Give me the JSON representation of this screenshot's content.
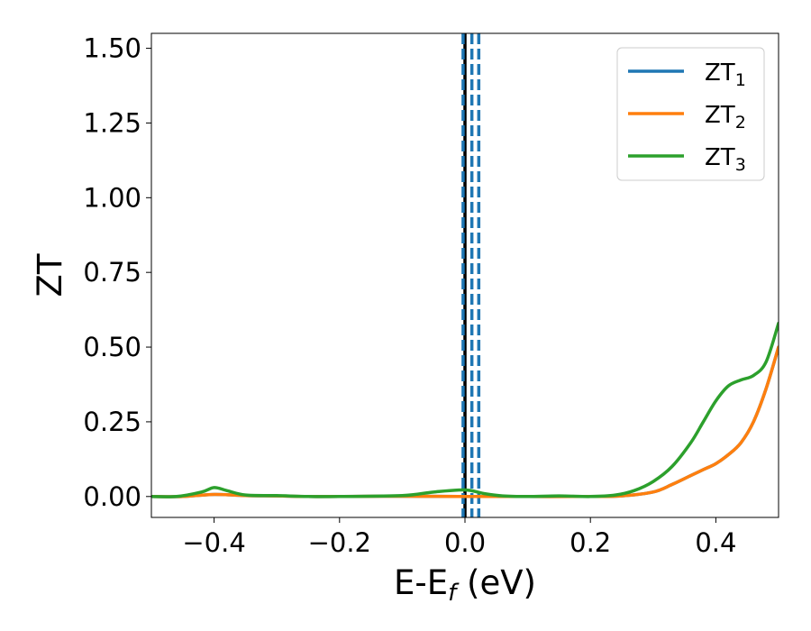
{
  "chart_data": {
    "type": "line",
    "xlabel": "E-E",
    "xlabel_sub": "f",
    "xlabel_unit": " (eV)",
    "ylabel": "ZT",
    "xlim": [
      -0.5,
      0.5
    ],
    "ylim": [
      -0.07,
      1.55
    ],
    "xticks": [
      -0.4,
      -0.2,
      0.0,
      0.2,
      0.4
    ],
    "xtick_labels": [
      "−0.4",
      "−0.2",
      "0.0",
      "0.2",
      "0.4"
    ],
    "yticks": [
      0.0,
      0.25,
      0.5,
      0.75,
      1.0,
      1.25,
      1.5
    ],
    "ytick_labels": [
      "0.00",
      "0.25",
      "0.50",
      "0.75",
      "1.00",
      "1.25",
      "1.50"
    ],
    "legend_position": "top-right",
    "vlines": [
      {
        "x": 0.0,
        "style": "solid",
        "color": "#000000"
      },
      {
        "x": -0.003,
        "style": "dashed",
        "color": "#1f77b4"
      },
      {
        "x": 0.011,
        "style": "dashed",
        "color": "#1f77b4"
      },
      {
        "x": 0.022,
        "style": "dashed",
        "color": "#1f77b4"
      }
    ],
    "series": [
      {
        "name": "ZT",
        "name_sub": "1",
        "color": "#1f77b4",
        "x": [
          -0.5,
          -0.45,
          -0.4,
          -0.35,
          -0.3,
          -0.25,
          -0.2,
          -0.1,
          0.0,
          0.1,
          0.2,
          0.25,
          0.3,
          0.33,
          0.36,
          0.38,
          0.4,
          0.42,
          0.44,
          0.46,
          0.48,
          0.5
        ],
        "y": [
          0.0,
          0.0,
          0.007,
          0.003,
          0.002,
          0.0,
          0.0,
          0.001,
          0.0,
          0.0,
          0.0,
          0.002,
          0.015,
          0.04,
          0.07,
          0.09,
          0.11,
          0.14,
          0.18,
          0.25,
          0.36,
          0.5
        ]
      },
      {
        "name": "ZT",
        "name_sub": "2",
        "color": "#ff7f0e",
        "x": [
          -0.5,
          -0.45,
          -0.4,
          -0.35,
          -0.3,
          -0.25,
          -0.2,
          -0.1,
          0.0,
          0.1,
          0.2,
          0.25,
          0.3,
          0.33,
          0.36,
          0.38,
          0.4,
          0.42,
          0.44,
          0.46,
          0.48,
          0.5
        ],
        "y": [
          0.0,
          0.0,
          0.007,
          0.003,
          0.002,
          0.0,
          0.0,
          0.001,
          0.0,
          0.0,
          0.0,
          0.002,
          0.015,
          0.04,
          0.07,
          0.09,
          0.11,
          0.14,
          0.18,
          0.25,
          0.36,
          0.5
        ]
      },
      {
        "name": "ZT",
        "name_sub": "3",
        "color": "#2ca02c",
        "x": [
          -0.5,
          -0.46,
          -0.42,
          -0.4,
          -0.38,
          -0.35,
          -0.3,
          -0.25,
          -0.2,
          -0.1,
          -0.05,
          0.0,
          0.03,
          0.06,
          0.1,
          0.15,
          0.2,
          0.24,
          0.27,
          0.3,
          0.33,
          0.36,
          0.38,
          0.4,
          0.42,
          0.44,
          0.46,
          0.48,
          0.5
        ],
        "y": [
          0.0,
          0.0,
          0.015,
          0.03,
          0.02,
          0.005,
          0.003,
          0.0,
          0.0,
          0.003,
          0.015,
          0.022,
          0.01,
          0.002,
          0.0,
          0.002,
          0.0,
          0.005,
          0.02,
          0.05,
          0.1,
          0.18,
          0.25,
          0.32,
          0.37,
          0.39,
          0.405,
          0.45,
          0.58
        ]
      }
    ]
  }
}
